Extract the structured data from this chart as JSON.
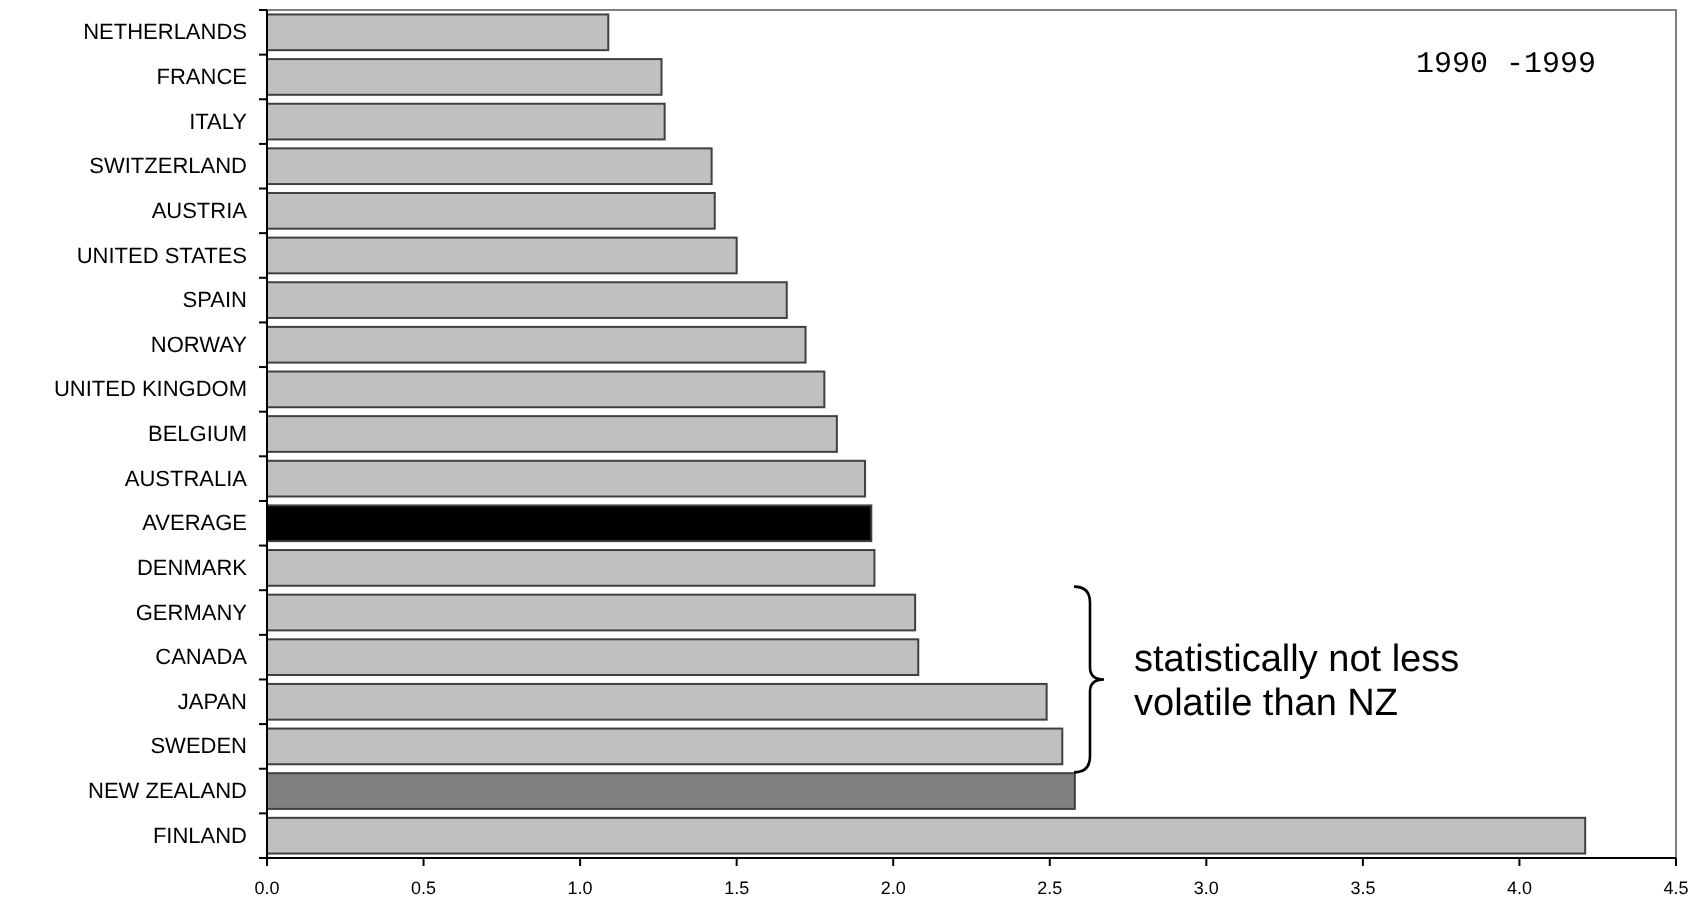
{
  "chart_data": {
    "type": "bar",
    "orientation": "horizontal",
    "categories": [
      "NETHERLANDS",
      "FRANCE",
      "ITALY",
      "SWITZERLAND",
      "AUSTRIA",
      "UNITED STATES",
      "SPAIN",
      "NORWAY",
      "UNITED KINGDOM",
      "BELGIUM",
      "AUSTRALIA",
      "AVERAGE",
      "DENMARK",
      "GERMANY",
      "CANADA",
      "JAPAN",
      "SWEDEN",
      "NEW ZEALAND",
      "FINLAND"
    ],
    "values": [
      1.09,
      1.26,
      1.27,
      1.42,
      1.43,
      1.5,
      1.66,
      1.72,
      1.78,
      1.82,
      1.91,
      1.93,
      1.94,
      2.07,
      2.08,
      2.49,
      2.54,
      2.58,
      4.21
    ],
    "colors": [
      "#c0c0c0",
      "#c0c0c0",
      "#c0c0c0",
      "#c0c0c0",
      "#c0c0c0",
      "#c0c0c0",
      "#c0c0c0",
      "#c0c0c0",
      "#c0c0c0",
      "#c0c0c0",
      "#c0c0c0",
      "#000000",
      "#c0c0c0",
      "#c0c0c0",
      "#c0c0c0",
      "#c0c0c0",
      "#c0c0c0",
      "#808080",
      "#c0c0c0"
    ],
    "xlim": [
      0,
      4.5
    ],
    "xticks": [
      {
        "value": 0,
        "label": "0.0"
      },
      {
        "value": 0.5,
        "label": "0.5"
      },
      {
        "value": 1,
        "label": "1.0"
      },
      {
        "value": 1.5,
        "label": "1.5"
      },
      {
        "value": 2,
        "label": "2.0"
      },
      {
        "value": 2.5,
        "label": "2.5"
      },
      {
        "value": 3,
        "label": "3.0"
      },
      {
        "value": 3.5,
        "label": "3.5"
      },
      {
        "value": 4,
        "label": "4.0"
      },
      {
        "value": 4.5,
        "label": "4.5"
      }
    ],
    "annotations": [
      "1990 -1999",
      "statistically not less volatile than NZ"
    ],
    "grid": false
  }
}
